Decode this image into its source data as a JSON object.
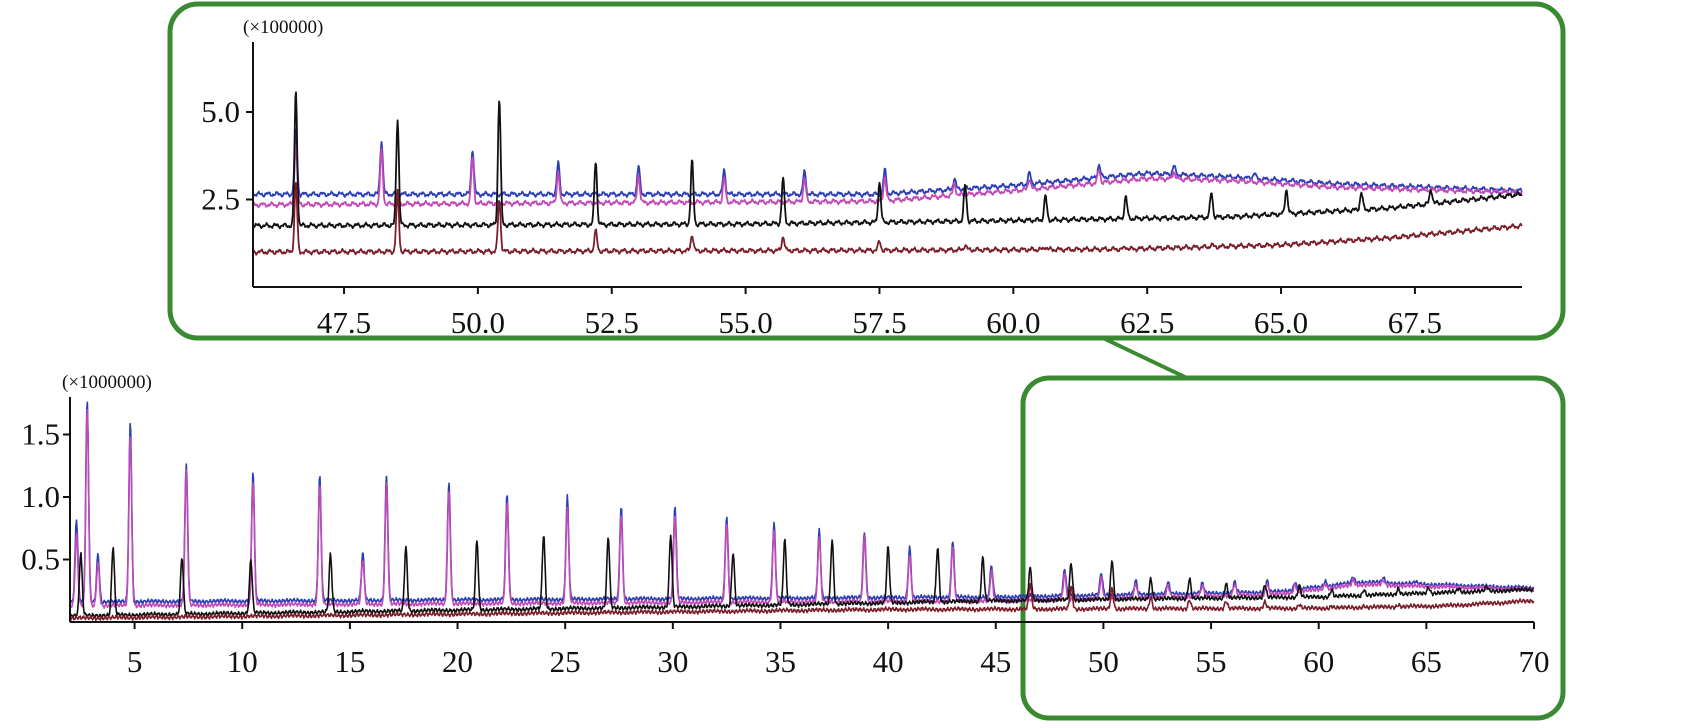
{
  "chart_data": [
    {
      "id": "main",
      "type": "line",
      "multiplier_label": "(×1000000)",
      "xlim": [
        2,
        70
      ],
      "ylim": [
        0,
        1.8
      ],
      "x_ticks": [
        5,
        10,
        15,
        20,
        25,
        30,
        35,
        40,
        45,
        50,
        55,
        60,
        65,
        70
      ],
      "x_tick_labels": [
        "5",
        "10",
        "15",
        "20",
        "25",
        "30",
        "35",
        "40",
        "45",
        "50",
        "55",
        "60",
        "65",
        "70"
      ],
      "y_ticks": [
        0.5,
        1.0,
        1.5
      ],
      "y_tick_labels": [
        "0.5",
        "1.0",
        "1.5"
      ],
      "series": [
        {
          "color": "#2d3fb5",
          "baseline": [
            [
              2,
              0.16
            ],
            [
              45,
              0.2
            ],
            [
              58,
              0.24
            ],
            [
              62,
              0.32
            ],
            [
              70,
              0.27
            ]
          ],
          "peaks": [
            [
              2.3,
              0.82
            ],
            [
              2.8,
              1.78
            ],
            [
              3.3,
              0.55
            ],
            [
              4.8,
              1.6
            ],
            [
              7.4,
              1.27
            ],
            [
              10.5,
              1.2
            ],
            [
              13.6,
              1.17
            ],
            [
              15.6,
              0.55
            ],
            [
              16.7,
              1.18
            ],
            [
              19.6,
              1.13
            ],
            [
              22.3,
              1.03
            ],
            [
              25.1,
              1.0
            ],
            [
              27.6,
              0.93
            ],
            [
              30.1,
              0.93
            ],
            [
              32.5,
              0.85
            ],
            [
              34.7,
              0.8
            ],
            [
              36.8,
              0.73
            ],
            [
              38.9,
              0.73
            ],
            [
              41.0,
              0.6
            ],
            [
              43.0,
              0.65
            ],
            [
              44.8,
              0.45
            ],
            [
              48.2,
              0.42
            ],
            [
              49.9,
              0.39
            ],
            [
              51.5,
              0.33
            ],
            [
              53.0,
              0.32
            ],
            [
              54.6,
              0.31
            ],
            [
              56.1,
              0.32
            ],
            [
              57.6,
              0.33
            ],
            [
              58.9,
              0.32
            ],
            [
              60.3,
              0.33
            ],
            [
              61.6,
              0.36
            ],
            [
              63.0,
              0.35
            ],
            [
              64.5,
              0.32
            ]
          ]
        },
        {
          "color": "#c04ab8",
          "baseline": [
            [
              2,
              0.13
            ],
            [
              45,
              0.17
            ],
            [
              58,
              0.22
            ],
            [
              62,
              0.3
            ],
            [
              70,
              0.26
            ]
          ],
          "peaks": [
            [
              2.3,
              0.7
            ],
            [
              2.8,
              1.7
            ],
            [
              3.3,
              0.48
            ],
            [
              4.8,
              1.5
            ],
            [
              7.4,
              1.2
            ],
            [
              10.5,
              1.12
            ],
            [
              13.6,
              1.1
            ],
            [
              15.6,
              0.5
            ],
            [
              16.7,
              1.1
            ],
            [
              19.6,
              1.05
            ],
            [
              22.3,
              0.95
            ],
            [
              25.1,
              0.93
            ],
            [
              27.6,
              0.86
            ],
            [
              30.1,
              0.85
            ],
            [
              32.5,
              0.8
            ],
            [
              34.7,
              0.74
            ],
            [
              36.8,
              0.68
            ],
            [
              38.9,
              0.68
            ],
            [
              41.0,
              0.55
            ],
            [
              43.0,
              0.6
            ],
            [
              44.8,
              0.4
            ],
            [
              48.2,
              0.38
            ],
            [
              49.9,
              0.35
            ],
            [
              51.5,
              0.3
            ],
            [
              53.0,
              0.29
            ],
            [
              54.6,
              0.29
            ],
            [
              56.1,
              0.3
            ],
            [
              57.6,
              0.31
            ],
            [
              58.9,
              0.3
            ],
            [
              60.3,
              0.31
            ],
            [
              61.6,
              0.34
            ],
            [
              63.0,
              0.33
            ]
          ]
        },
        {
          "color": "#111111",
          "baseline": [
            [
              2,
              0.05
            ],
            [
              30,
              0.12
            ],
            [
              45,
              0.17
            ],
            [
              60,
              0.2
            ],
            [
              70,
              0.26
            ]
          ],
          "peaks": [
            [
              2.5,
              0.55
            ],
            [
              4.0,
              0.6
            ],
            [
              7.2,
              0.52
            ],
            [
              10.4,
              0.5
            ],
            [
              14.1,
              0.54
            ],
            [
              17.6,
              0.6
            ],
            [
              20.9,
              0.66
            ],
            [
              24.0,
              0.7
            ],
            [
              27.0,
              0.68
            ],
            [
              29.9,
              0.7
            ],
            [
              32.8,
              0.56
            ],
            [
              35.2,
              0.66
            ],
            [
              37.4,
              0.66
            ],
            [
              40.0,
              0.6
            ],
            [
              42.3,
              0.6
            ],
            [
              44.4,
              0.52
            ],
            [
              46.6,
              0.43
            ],
            [
              48.5,
              0.47
            ],
            [
              50.4,
              0.5
            ],
            [
              52.2,
              0.35
            ],
            [
              54.0,
              0.35
            ],
            [
              55.7,
              0.31
            ],
            [
              57.5,
              0.3
            ],
            [
              59.1,
              0.29
            ],
            [
              60.6,
              0.26
            ],
            [
              62.1,
              0.26
            ],
            [
              63.7,
              0.27
            ],
            [
              65.1,
              0.28
            ],
            [
              66.5,
              0.27
            ],
            [
              67.8,
              0.28
            ]
          ]
        },
        {
          "color": "#7a1e2a",
          "baseline": [
            [
              2,
              0.03
            ],
            [
              40,
              0.1
            ],
            [
              60,
              0.11
            ],
            [
              66,
              0.13
            ],
            [
              70,
              0.17
            ]
          ],
          "peaks": [
            [
              46.6,
              0.3
            ],
            [
              48.5,
              0.28
            ],
            [
              50.4,
              0.27
            ],
            [
              52.2,
              0.2
            ],
            [
              54.0,
              0.18
            ],
            [
              55.7,
              0.17
            ],
            [
              57.5,
              0.16
            ],
            [
              59.1,
              0.14
            ],
            [
              60.6,
              0.13
            ],
            [
              62.1,
              0.13
            ],
            [
              63.7,
              0.14
            ]
          ]
        }
      ]
    },
    {
      "id": "inset",
      "type": "line",
      "multiplier_label": "(×100000)",
      "xlim": [
        45.8,
        69.5
      ],
      "ylim": [
        0,
        7.0
      ],
      "x_ticks": [
        47.5,
        50.0,
        52.5,
        55.0,
        57.5,
        60.0,
        62.5,
        65.0,
        67.5
      ],
      "x_tick_labels": [
        "47.5",
        "50.0",
        "52.5",
        "55.0",
        "57.5",
        "60.0",
        "62.5",
        "65.0",
        "67.5"
      ],
      "y_ticks": [
        2.5,
        5.0
      ],
      "y_tick_labels": [
        "2.5",
        "5.0"
      ],
      "series": [
        {
          "color": "#2d3fb5",
          "baseline": [
            [
              45.8,
              2.65
            ],
            [
              57.5,
              2.65
            ],
            [
              60.0,
              2.9
            ],
            [
              62.5,
              3.25
            ],
            [
              64.0,
              3.15
            ],
            [
              66.0,
              2.95
            ],
            [
              69.5,
              2.75
            ]
          ],
          "peaks": [
            [
              46.6,
              4.5
            ],
            [
              48.2,
              4.2
            ],
            [
              49.9,
              3.95
            ],
            [
              51.5,
              3.55
            ],
            [
              53.0,
              3.45
            ],
            [
              54.6,
              3.35
            ],
            [
              56.1,
              3.3
            ],
            [
              57.6,
              3.35
            ],
            [
              58.9,
              3.1
            ],
            [
              60.3,
              3.25
            ],
            [
              61.6,
              3.5
            ],
            [
              63.0,
              3.45
            ],
            [
              64.5,
              3.25
            ]
          ]
        },
        {
          "color": "#c04ab8",
          "baseline": [
            [
              45.8,
              2.35
            ],
            [
              57.5,
              2.45
            ],
            [
              60.0,
              2.75
            ],
            [
              62.5,
              3.1
            ],
            [
              64.0,
              3.05
            ],
            [
              66.0,
              2.85
            ],
            [
              69.5,
              2.7
            ]
          ],
          "peaks": [
            [
              46.6,
              4.1
            ],
            [
              48.2,
              3.9
            ],
            [
              49.9,
              3.7
            ],
            [
              51.5,
              3.3
            ],
            [
              53.0,
              3.2
            ],
            [
              54.6,
              3.1
            ],
            [
              56.1,
              3.1
            ],
            [
              57.6,
              3.15
            ],
            [
              58.9,
              2.95
            ],
            [
              60.3,
              3.1
            ],
            [
              61.6,
              3.35
            ],
            [
              63.0,
              3.3
            ]
          ]
        },
        {
          "color": "#111111",
          "baseline": [
            [
              45.8,
              1.75
            ],
            [
              55.0,
              1.8
            ],
            [
              60.0,
              1.9
            ],
            [
              64.0,
              2.0
            ],
            [
              67.0,
              2.25
            ],
            [
              69.5,
              2.65
            ]
          ],
          "peaks": [
            [
              46.6,
              5.6
            ],
            [
              48.5,
              4.8
            ],
            [
              50.4,
              5.4
            ],
            [
              52.2,
              3.6
            ],
            [
              54.0,
              3.6
            ],
            [
              55.7,
              3.1
            ],
            [
              57.5,
              3.0
            ],
            [
              59.1,
              2.9
            ],
            [
              60.6,
              2.6
            ],
            [
              62.1,
              2.6
            ],
            [
              63.7,
              2.7
            ],
            [
              65.1,
              2.8
            ],
            [
              66.5,
              2.7
            ],
            [
              67.8,
              2.8
            ]
          ]
        },
        {
          "color": "#7a1e2a",
          "baseline": [
            [
              45.8,
              1.0
            ],
            [
              58.0,
              1.05
            ],
            [
              62.0,
              1.08
            ],
            [
              65.0,
              1.2
            ],
            [
              67.0,
              1.4
            ],
            [
              69.5,
              1.75
            ]
          ],
          "peaks": [
            [
              46.6,
              3.0
            ],
            [
              48.5,
              2.7
            ],
            [
              50.4,
              2.5
            ],
            [
              52.2,
              1.6
            ],
            [
              54.0,
              1.5
            ],
            [
              55.7,
              1.45
            ],
            [
              57.5,
              1.3
            ],
            [
              59.1,
              1.2
            ],
            [
              60.6,
              1.15
            ],
            [
              62.1,
              1.15
            ],
            [
              63.7,
              1.2
            ]
          ]
        }
      ]
    }
  ]
}
